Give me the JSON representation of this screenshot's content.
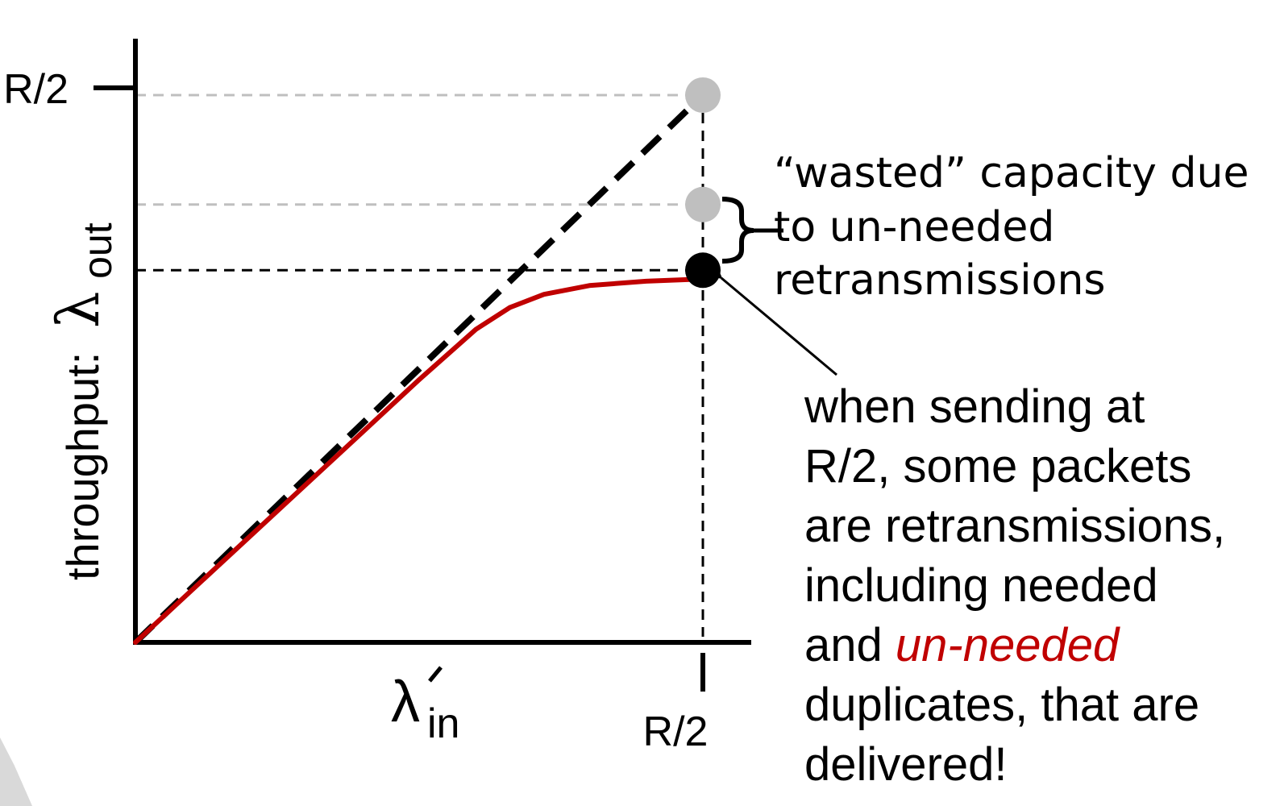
{
  "chart_data": {
    "type": "line",
    "xlabel_symbol": "λ",
    "xlabel_sub": "in",
    "ylabel_prefix": "throughput:",
    "ylabel_symbol": "λ",
    "ylabel_sub": "out",
    "x_tick_label": "R/2",
    "y_tick_label": "R/2",
    "xlim": [
      0,
      0.5
    ],
    "ylim": [
      0,
      0.5
    ],
    "series": [
      {
        "style": "dashed",
        "color": "#000000",
        "x": [
          0,
          0.5
        ],
        "y": [
          0,
          0.5
        ]
      },
      {
        "style": "solid",
        "color": "#c00000",
        "x": [
          0,
          0.05,
          0.1,
          0.15,
          0.2,
          0.25,
          0.3,
          0.33,
          0.36,
          0.4,
          0.45,
          0.5
        ],
        "y": [
          0,
          0.048,
          0.096,
          0.144,
          0.192,
          0.24,
          0.286,
          0.306,
          0.318,
          0.326,
          0.33,
          0.332
        ]
      }
    ],
    "points": [
      {
        "x": 0.5,
        "y": 0.5,
        "color": "#bfbfbf"
      },
      {
        "x": 0.5,
        "y": 0.4,
        "color": "#bfbfbf"
      },
      {
        "x": 0.5,
        "y": 0.34,
        "color": "#000000"
      }
    ],
    "guides": [
      {
        "y": 0.5,
        "color": "#bfbfbf"
      },
      {
        "y": 0.4,
        "color": "#bfbfbf"
      },
      {
        "y": 0.34,
        "color": "#000000"
      }
    ]
  },
  "annotations": {
    "wasted_lines": [
      "“wasted” capacity due",
      "to un-needed",
      "retransmissions"
    ],
    "note_lines": [
      "when sending at",
      "R/2, some packets",
      "are retransmissions,",
      "including needed"
    ],
    "note_and": "and ",
    "note_highlight": "un-needed",
    "note_tail": [
      "duplicates, that are",
      "delivered!"
    ],
    "highlight_color": "#c00000"
  }
}
